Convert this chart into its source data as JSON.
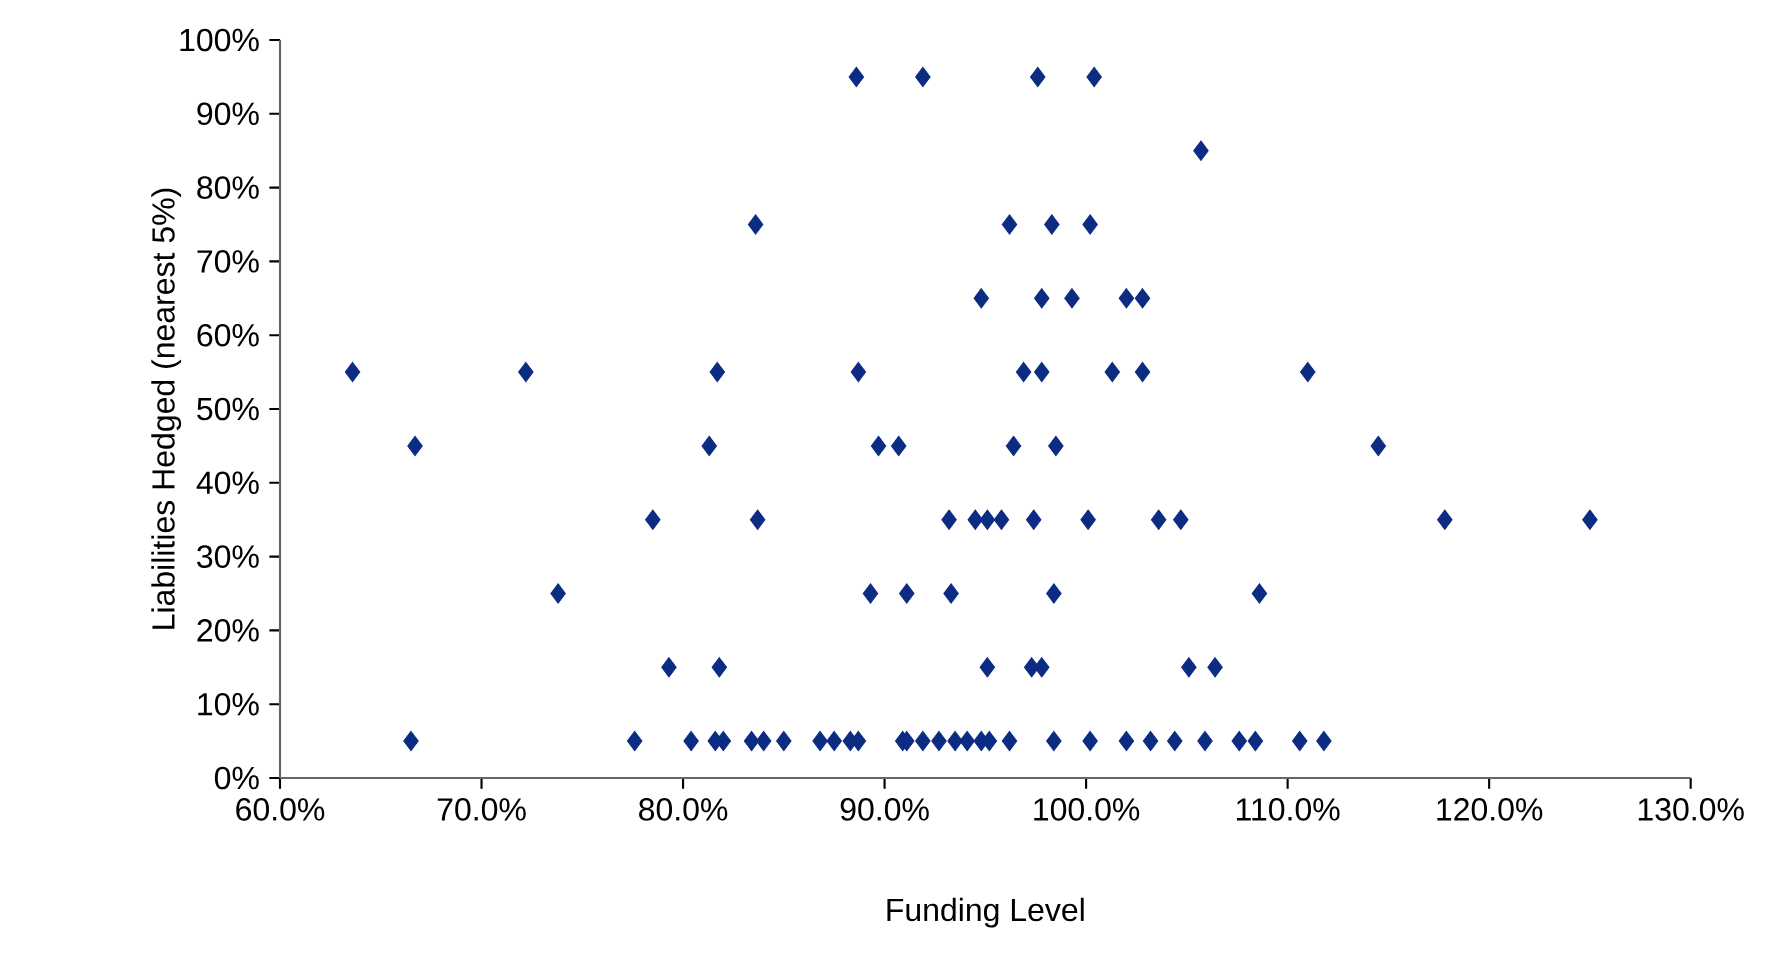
{
  "chart_data": {
    "type": "scatter",
    "xlabel": "Funding Level",
    "ylabel": "Liabilities Hedged (nearest 5%)",
    "marker": "diamond",
    "grid": false,
    "xlim": [
      60,
      130
    ],
    "ylim": [
      0,
      100
    ],
    "xticks": [
      {
        "value": 60,
        "label": "60.0%"
      },
      {
        "value": 70,
        "label": "70.0%"
      },
      {
        "value": 80,
        "label": "80.0%"
      },
      {
        "value": 90,
        "label": "90.0%"
      },
      {
        "value": 100,
        "label": "100.0%"
      },
      {
        "value": 110,
        "label": "110.0%"
      },
      {
        "value": 120,
        "label": "120.0%"
      },
      {
        "value": 130,
        "label": "130.0%"
      }
    ],
    "yticks": [
      {
        "value": 0,
        "label": "0%"
      },
      {
        "value": 10,
        "label": "10%"
      },
      {
        "value": 20,
        "label": "20%"
      },
      {
        "value": 30,
        "label": "30%"
      },
      {
        "value": 40,
        "label": "40%"
      },
      {
        "value": 50,
        "label": "50%"
      },
      {
        "value": 60,
        "label": "60%"
      },
      {
        "value": 70,
        "label": "70%"
      },
      {
        "value": 80,
        "label": "80%"
      },
      {
        "value": 90,
        "label": "90%"
      },
      {
        "value": 100,
        "label": "100%"
      }
    ],
    "series": [
      {
        "color": "#0c2c84",
        "x": [
          88.6,
          91.9,
          97.6,
          100.4,
          105.7,
          83.6,
          96.2,
          98.3,
          100.2,
          94.8,
          97.8,
          99.3,
          102,
          102.8,
          63.6,
          72.2,
          81.7,
          88.7,
          96.9,
          97.8,
          101.3,
          102.8,
          111,
          66.7,
          81.3,
          89.7,
          90.7,
          96.4,
          98.5,
          114.5,
          78.5,
          83.7,
          93.2,
          94.5,
          95.1,
          95.8,
          97.4,
          100.1,
          103.6,
          104.7,
          117.8,
          125,
          73.8,
          89.3,
          91.1,
          93.3,
          98.4,
          108.6,
          79.3,
          81.8,
          95.1,
          97.3,
          97.8,
          105.1,
          106.4,
          66.5,
          77.6,
          80.4,
          81.6,
          82,
          83.4,
          84,
          85,
          86.8,
          87.5,
          88.3,
          88.7,
          90.9,
          91.1,
          91.9,
          92.7,
          93.5,
          94.1,
          94.8,
          95.2,
          96.2,
          98.4,
          100.2,
          102,
          103.2,
          104.4,
          105.9,
          107.6,
          108.4,
          110.6,
          111.8
        ],
        "values": [
          95,
          95,
          95,
          95,
          85,
          75,
          75,
          75,
          75,
          65,
          65,
          65,
          65,
          65,
          55,
          55,
          55,
          55,
          55,
          55,
          55,
          55,
          55,
          45,
          45,
          45,
          45,
          45,
          45,
          45,
          35,
          35,
          35,
          35,
          35,
          35,
          35,
          35,
          35,
          35,
          35,
          35,
          25,
          25,
          25,
          25,
          25,
          25,
          15,
          15,
          15,
          15,
          15,
          15,
          15,
          5,
          5,
          5,
          5,
          5,
          5,
          5,
          5,
          5,
          5,
          5,
          5,
          5,
          5,
          5,
          5,
          5,
          5,
          5,
          5,
          5,
          5,
          5,
          5,
          5,
          5,
          5,
          5,
          5,
          5,
          5
        ]
      }
    ]
  }
}
